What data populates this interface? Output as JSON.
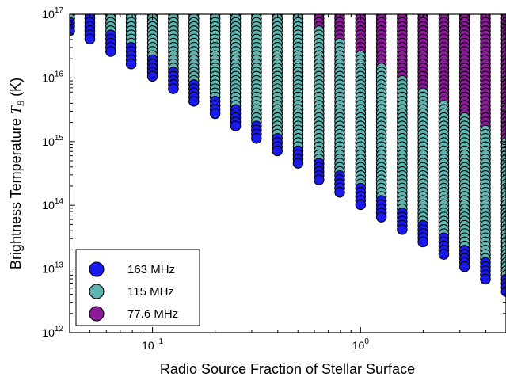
{
  "chart_data": {
    "type": "scatter",
    "xlabel": "Radio Source Fraction of Stellar Surface",
    "ylabel_prefix": "Brightness Temperature ",
    "ylabel_symbol": "T",
    "ylabel_subscript": "B",
    "ylabel_suffix": "  (K)",
    "xscale": "log",
    "yscale": "log",
    "xlim": [
      0.04,
      5.0
    ],
    "ylim": [
      1000000000000.0,
      1e+17
    ],
    "x_ticks": [
      {
        "value": 0.1,
        "base": "10",
        "exp": "−1"
      },
      {
        "value": 1.0,
        "base": "10",
        "exp": "0"
      }
    ],
    "y_ticks": [
      {
        "value": 1000000000000.0,
        "base": "10",
        "exp": "12"
      },
      {
        "value": 10000000000000.0,
        "base": "10",
        "exp": "13"
      },
      {
        "value": 100000000000000.0,
        "base": "10",
        "exp": "14"
      },
      {
        "value": 1000000000000000.0,
        "base": "10",
        "exp": "15"
      },
      {
        "value": 1e+16,
        "base": "10",
        "exp": "16"
      },
      {
        "value": 1e+17,
        "base": "10",
        "exp": "17"
      }
    ],
    "legend_position": "lower-left",
    "series": [
      {
        "name": "163 MHz",
        "color": "#1a1aee"
      },
      {
        "name": "115 MHz",
        "color": "#5fb5b0"
      },
      {
        "name": "77.6 MHz",
        "color": "#8c1a9a"
      }
    ],
    "columns": [
      {
        "x": 0.04,
        "blue_min": 5e+16,
        "teal_min": 8e+16,
        "purple_min": null
      },
      {
        "x": 0.05,
        "blue_min": 4e+16,
        "teal_min": 9e+16,
        "purple_min": null
      },
      {
        "x": 0.063,
        "blue_min": 2.5e+16,
        "teal_min": 5e+16,
        "purple_min": null
      },
      {
        "x": 0.079,
        "blue_min": 1.6e+16,
        "teal_min": 3.2e+16,
        "purple_min": null
      },
      {
        "x": 0.1,
        "blue_min": 1e+16,
        "teal_min": 2e+16,
        "purple_min": null
      },
      {
        "x": 0.126,
        "blue_min": 6300000000000000.0,
        "teal_min": 1.3e+16,
        "purple_min": null
      },
      {
        "x": 0.158,
        "blue_min": 4000000000000000.0,
        "teal_min": 8000000000000000.0,
        "purple_min": null
      },
      {
        "x": 0.2,
        "blue_min": 2500000000000000.0,
        "teal_min": 5000000000000000.0,
        "purple_min": null
      },
      {
        "x": 0.251,
        "blue_min": 1600000000000000.0,
        "teal_min": 3200000000000000.0,
        "purple_min": null
      },
      {
        "x": 0.316,
        "blue_min": 1000000000000000.0,
        "teal_min": 2000000000000000.0,
        "purple_min": null
      },
      {
        "x": 0.398,
        "blue_min": 630000000000000.0,
        "teal_min": 1300000000000000.0,
        "purple_min": null
      },
      {
        "x": 0.501,
        "blue_min": 400000000000000.0,
        "teal_min": 800000000000000.0,
        "purple_min": 1e+17
      },
      {
        "x": 0.631,
        "blue_min": 250000000000000.0,
        "teal_min": 500000000000000.0,
        "purple_min": 6.3e+16
      },
      {
        "x": 0.794,
        "blue_min": 160000000000000.0,
        "teal_min": 320000000000000.0,
        "purple_min": 4e+16
      },
      {
        "x": 1.0,
        "blue_min": 100000000000000.0,
        "teal_min": 200000000000000.0,
        "purple_min": 2.5e+16
      },
      {
        "x": 1.259,
        "blue_min": 63000000000000.0,
        "teal_min": 130000000000000.0,
        "purple_min": 1.6e+16
      },
      {
        "x": 1.585,
        "blue_min": 40000000000000.0,
        "teal_min": 80000000000000.0,
        "purple_min": 1e+16
      },
      {
        "x": 1.995,
        "blue_min": 25000000000000.0,
        "teal_min": 50000000000000.0,
        "purple_min": 6300000000000000.0
      },
      {
        "x": 2.512,
        "blue_min": 16000000000000.0,
        "teal_min": 32000000000000.0,
        "purple_min": 4000000000000000.0
      },
      {
        "x": 3.162,
        "blue_min": 10000000000000.0,
        "teal_min": 20000000000000.0,
        "purple_min": 2500000000000000.0
      },
      {
        "x": 3.981,
        "blue_min": 6300000000000.0,
        "teal_min": 13000000000000.0,
        "purple_min": 1600000000000000.0
      },
      {
        "x": 5.012,
        "blue_min": 4000000000000.0,
        "teal_min": 8000000000000.0,
        "purple_min": 1000000000000000.0
      }
    ],
    "column_top": 1e+17,
    "column_step_dex": 0.065
  }
}
